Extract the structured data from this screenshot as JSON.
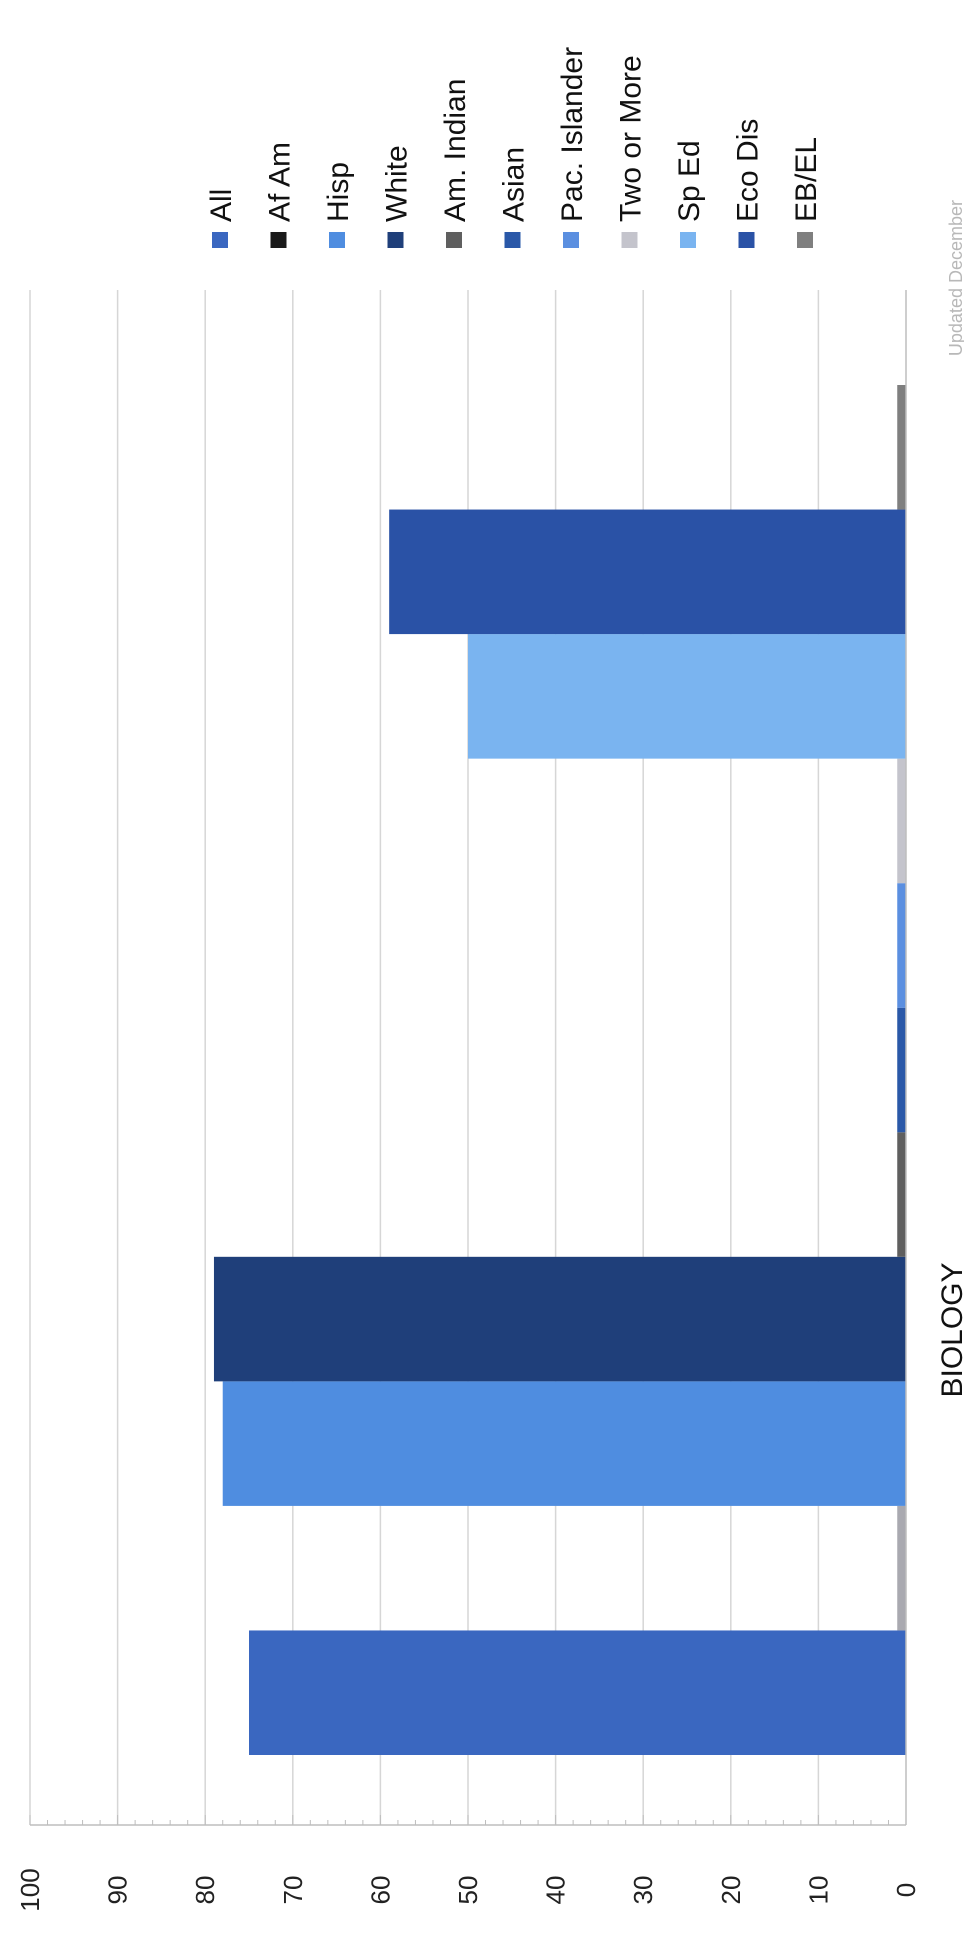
{
  "footer_note": "Updated December",
  "chart_data": {
    "type": "bar",
    "orientation": "rotated 90° clockwise (vertical bars drawn sideways)",
    "categories": [
      "BIOLOGY"
    ],
    "ylim": [
      0,
      100
    ],
    "yticks": [
      "0",
      "10",
      "20",
      "30",
      "40",
      "50",
      "60",
      "70",
      "80",
      "90",
      "100"
    ],
    "grid": true,
    "legend_position": "right",
    "series": [
      {
        "name": "All",
        "values": [
          75
        ],
        "color": "#3a67c0"
      },
      {
        "name": "Af Am",
        "values": [
          1
        ],
        "color": "#a9a9b0"
      },
      {
        "name": "Hisp",
        "values": [
          78
        ],
        "color": "#4f8de0"
      },
      {
        "name": "White",
        "values": [
          79
        ],
        "color": "#1f3f7a"
      },
      {
        "name": "Am. Indian",
        "values": [
          1
        ],
        "color": "#5f5f5f"
      },
      {
        "name": "Asian",
        "values": [
          1
        ],
        "color": "#2a58a8"
      },
      {
        "name": "Pac. Islander",
        "values": [
          1
        ],
        "color": "#5b8fe0"
      },
      {
        "name": "Two or More",
        "values": [
          1
        ],
        "color": "#c4c4cc"
      },
      {
        "name": "Sp Ed",
        "values": [
          50
        ],
        "color": "#7ab4f0"
      },
      {
        "name": "Eco Dis",
        "values": [
          59
        ],
        "color": "#2a52a6"
      },
      {
        "name": "EB/EL",
        "values": [
          1
        ],
        "color": "#7f7f7f"
      }
    ],
    "legend_colors": [
      "#3a67c0",
      "#1a1a1a",
      "#4f8de0",
      "#1f3f7a",
      "#5f5f5f",
      "#2a58a8",
      "#5b8fe0",
      "#c4c4cc",
      "#7ab4f0",
      "#2a52a6",
      "#7f7f7f"
    ]
  }
}
